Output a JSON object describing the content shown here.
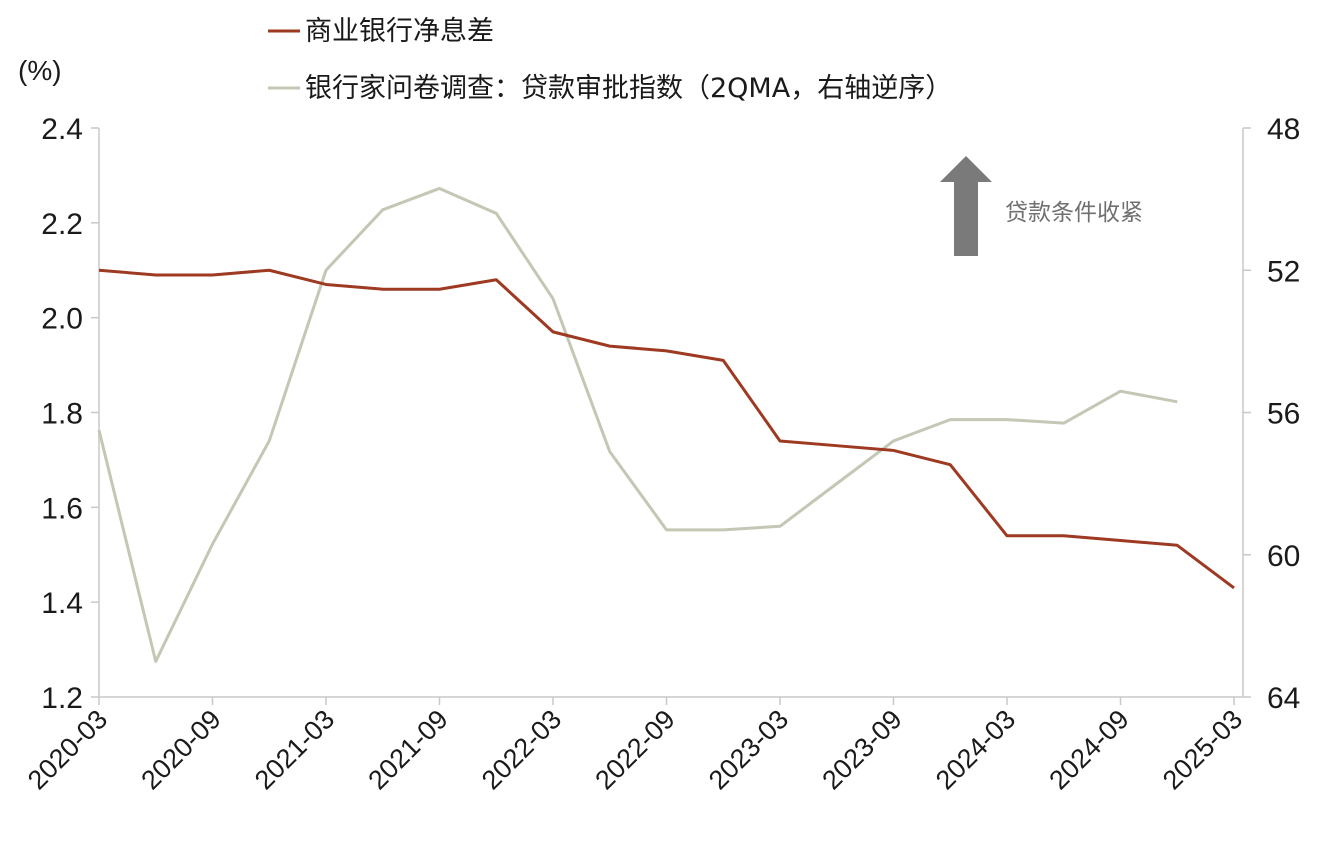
{
  "chart_data": {
    "type": "line",
    "unit_label": "(%)",
    "x": [
      "2020-03",
      "2020-06",
      "2020-09",
      "2020-12",
      "2021-03",
      "2021-06",
      "2021-09",
      "2021-12",
      "2022-03",
      "2022-06",
      "2022-09",
      "2022-12",
      "2023-03",
      "2023-06",
      "2023-09",
      "2023-12",
      "2024-03",
      "2024-06",
      "2024-09",
      "2024-12",
      "2025-03"
    ],
    "x_tick_labels": [
      "2020-03",
      "2020-09",
      "2021-03",
      "2021-09",
      "2022-03",
      "2022-09",
      "2023-03",
      "2023-09",
      "2024-03",
      "2024-09",
      "2025-03"
    ],
    "y_left": {
      "ticks": [
        "2.4",
        "2.2",
        "2.0",
        "1.8",
        "1.6",
        "1.4",
        "1.2"
      ],
      "ylim": [
        1.2,
        2.4
      ]
    },
    "y_right": {
      "ticks": [
        "48",
        "52",
        "56",
        "60",
        "64"
      ],
      "ylim": [
        48,
        64
      ],
      "inverted": true
    },
    "series": [
      {
        "name": "商业银行净息差",
        "axis": "left",
        "color": "#9e3a22",
        "x": [
          "2020-03",
          "2020-06",
          "2020-09",
          "2020-12",
          "2021-03",
          "2021-06",
          "2021-09",
          "2021-12",
          "2022-03",
          "2022-06",
          "2022-09",
          "2022-12",
          "2023-03",
          "2023-06",
          "2023-09",
          "2023-12",
          "2024-03",
          "2024-06",
          "2024-09",
          "2024-12",
          "2025-03"
        ],
        "values": [
          2.1,
          2.09,
          2.09,
          2.1,
          2.07,
          2.06,
          2.06,
          2.08,
          1.97,
          1.94,
          1.93,
          1.91,
          1.74,
          1.73,
          1.72,
          1.69,
          1.54,
          1.54,
          1.53,
          1.52,
          1.43
        ]
      },
      {
        "name": "银行家问卷调查：贷款审批指数（2QMA，右轴逆序）",
        "axis": "right",
        "color": "#c3c8b4",
        "x": [
          "2020-03",
          "2020-06",
          "2020-09",
          "2020-12",
          "2021-03",
          "2021-06",
          "2021-09",
          "2021-12",
          "2022-03",
          "2022-06",
          "2022-09",
          "2022-12",
          "2023-03",
          "2023-06",
          "2023-09",
          "2023-12",
          "2024-03",
          "2024-06",
          "2024-09",
          "2024-12"
        ],
        "values": [
          56.5,
          63.0,
          59.7,
          56.8,
          52.0,
          50.3,
          49.7,
          50.4,
          52.8,
          57.1,
          59.3,
          59.3,
          59.2,
          58.0,
          56.8,
          56.2,
          56.2,
          56.3,
          55.4,
          55.7
        ]
      }
    ],
    "annotation": "贷款条件收紧",
    "legend_position": "top-left"
  }
}
